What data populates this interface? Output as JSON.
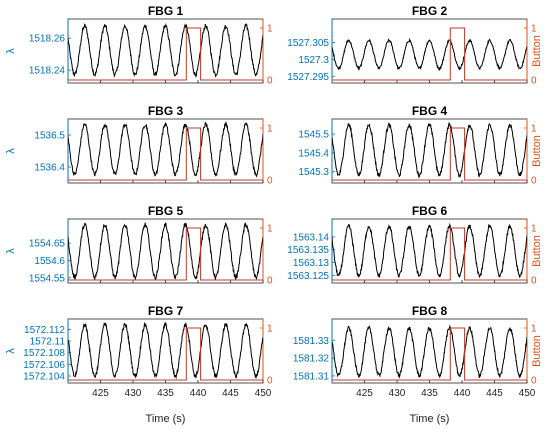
{
  "chart_data": {
    "type": "line",
    "layout": "grid 4 rows x 2 columns, shared time axis",
    "xlabel": "Time (s)",
    "xlim": [
      420,
      450
    ],
    "x_ticks": [
      "425",
      "430",
      "435",
      "440",
      "445",
      "450"
    ],
    "grid": false,
    "colors": {
      "wavelength": "#000000",
      "button": "#C0392B",
      "left_axis": "#0072BD",
      "right_axis": "#D95319"
    },
    "panels": [
      {
        "title": "FBG 1",
        "left_label": "λ",
        "right_label": "",
        "left_ticks": [
          "1518.26",
          "1518.24"
        ],
        "left_tick_values": [
          1518.26,
          1518.24
        ],
        "ylim": [
          1518.232,
          1518.272
        ],
        "right_ticks": [
          "1",
          "0"
        ],
        "series": [
          {
            "name": "wavelength",
            "x": [
              420,
              450
            ],
            "oscillation": {
              "period": 3.1,
              "phase": 421.8,
              "min": 1518.236,
              "max": 1518.269
            }
          },
          {
            "name": "button",
            "x": [
              420,
              438.2,
              438.2,
              440.4,
              440.4,
              450
            ],
            "y": [
              0,
              0,
              1,
              1,
              0,
              0
            ]
          }
        ]
      },
      {
        "title": "FBG 2",
        "left_label": "",
        "right_label": "Button",
        "left_ticks": [
          "1527.305",
          "1527.3",
          "1527.295"
        ],
        "left_tick_values": [
          1527.305,
          1527.3,
          1527.295
        ],
        "ylim": [
          1527.293,
          1527.312
        ],
        "right_ticks": [
          "1",
          "0"
        ],
        "series": [
          {
            "name": "wavelength",
            "x": [
              420,
              450
            ],
            "oscillation": {
              "period": 3.1,
              "phase": 421.8,
              "min": 1527.297,
              "max": 1527.306
            }
          },
          {
            "name": "button",
            "x": [
              420,
              438.2,
              438.2,
              440.4,
              440.4,
              450
            ],
            "y": [
              0,
              0,
              1,
              1,
              0,
              0
            ]
          }
        ]
      },
      {
        "title": "FBG 3",
        "left_label": "λ",
        "right_label": "",
        "left_ticks": [
          "1536.5",
          "1536.4"
        ],
        "left_tick_values": [
          1536.5,
          1536.4
        ],
        "ylim": [
          1536.35,
          1536.55
        ],
        "right_ticks": [
          "1",
          "0"
        ],
        "series": [
          {
            "name": "wavelength",
            "x": [
              420,
              450
            ],
            "oscillation": {
              "period": 3.1,
              "phase": 421.8,
              "min": 1536.37,
              "max": 1536.54
            }
          },
          {
            "name": "button",
            "x": [
              420,
              438.2,
              438.2,
              440.4,
              440.4,
              450
            ],
            "y": [
              0,
              0,
              1,
              1,
              0,
              0
            ]
          }
        ]
      },
      {
        "title": "FBG 4",
        "left_label": "",
        "right_label": "Button",
        "left_ticks": [
          "1545.5",
          "1545.4",
          "1545.3"
        ],
        "left_tick_values": [
          1545.5,
          1545.4,
          1545.3
        ],
        "ylim": [
          1545.24,
          1545.58
        ],
        "right_ticks": [
          "1",
          "0"
        ],
        "series": [
          {
            "name": "wavelength",
            "x": [
              420,
              450
            ],
            "oscillation": {
              "period": 3.1,
              "phase": 421.8,
              "min": 1545.27,
              "max": 1545.56
            }
          },
          {
            "name": "button",
            "x": [
              420,
              438.2,
              438.2,
              440.4,
              440.4,
              450
            ],
            "y": [
              0,
              0,
              1,
              1,
              0,
              0
            ]
          }
        ]
      },
      {
        "title": "FBG 5",
        "left_label": "λ",
        "right_label": "",
        "left_ticks": [
          "1554.65",
          "1554.6",
          "1554.55"
        ],
        "left_tick_values": [
          1554.65,
          1554.6,
          1554.55
        ],
        "ylim": [
          1554.535,
          1554.72
        ],
        "right_ticks": [
          "1",
          "0"
        ],
        "series": [
          {
            "name": "wavelength",
            "x": [
              420,
              450
            ],
            "oscillation": {
              "period": 3.1,
              "phase": 421.8,
              "min": 1554.545,
              "max": 1554.71
            }
          },
          {
            "name": "button",
            "x": [
              420,
              438.2,
              438.2,
              440.4,
              440.4,
              450
            ],
            "y": [
              0,
              0,
              1,
              1,
              0,
              0
            ]
          }
        ]
      },
      {
        "title": "FBG 6",
        "left_label": "",
        "right_label": "Button",
        "left_ticks": [
          "1563.14",
          "1563.135",
          "1563.13",
          "1563.125"
        ],
        "left_tick_values": [
          1563.14,
          1563.135,
          1563.13,
          1563.125
        ],
        "ylim": [
          1563.122,
          1563.147
        ],
        "right_ticks": [
          "1",
          "0"
        ],
        "series": [
          {
            "name": "wavelength",
            "x": [
              420,
              450
            ],
            "oscillation": {
              "period": 3.1,
              "phase": 421.8,
              "min": 1563.124,
              "max": 1563.145
            }
          },
          {
            "name": "button",
            "x": [
              420,
              438.2,
              438.2,
              440.4,
              440.4,
              450
            ],
            "y": [
              0,
              0,
              1,
              1,
              0,
              0
            ]
          }
        ]
      },
      {
        "title": "FBG 7",
        "left_label": "λ",
        "right_label": "",
        "left_ticks": [
          "1572.112",
          "1572.11",
          "1572.108",
          "1572.106",
          "1572.104"
        ],
        "left_tick_values": [
          1572.112,
          1572.11,
          1572.108,
          1572.106,
          1572.104
        ],
        "ylim": [
          1572.1028,
          1572.1138
        ],
        "right_ticks": [
          "1",
          "0"
        ],
        "series": [
          {
            "name": "wavelength",
            "x": [
              420,
              450
            ],
            "oscillation": {
              "period": 3.1,
              "phase": 421.8,
              "min": 1572.1036,
              "max": 1572.1132
            }
          },
          {
            "name": "button",
            "x": [
              420,
              438.2,
              438.2,
              440.4,
              440.4,
              450
            ],
            "y": [
              0,
              0,
              1,
              1,
              0,
              0
            ]
          }
        ]
      },
      {
        "title": "FBG 8",
        "left_label": "",
        "right_label": "Button",
        "left_ticks": [
          "1581.33",
          "1581.32",
          "1581.31"
        ],
        "left_tick_values": [
          1581.33,
          1581.32,
          1581.31
        ],
        "ylim": [
          1581.306,
          1581.342
        ],
        "right_ticks": [
          "1",
          "0"
        ],
        "series": [
          {
            "name": "wavelength",
            "x": [
              420,
              450
            ],
            "oscillation": {
              "period": 3.1,
              "phase": 421.8,
              "min": 1581.309,
              "max": 1581.338
            }
          },
          {
            "name": "button",
            "x": [
              420,
              438.2,
              438.2,
              440.4,
              440.4,
              450
            ],
            "y": [
              0,
              0,
              1,
              1,
              0,
              0
            ]
          }
        ]
      }
    ]
  }
}
